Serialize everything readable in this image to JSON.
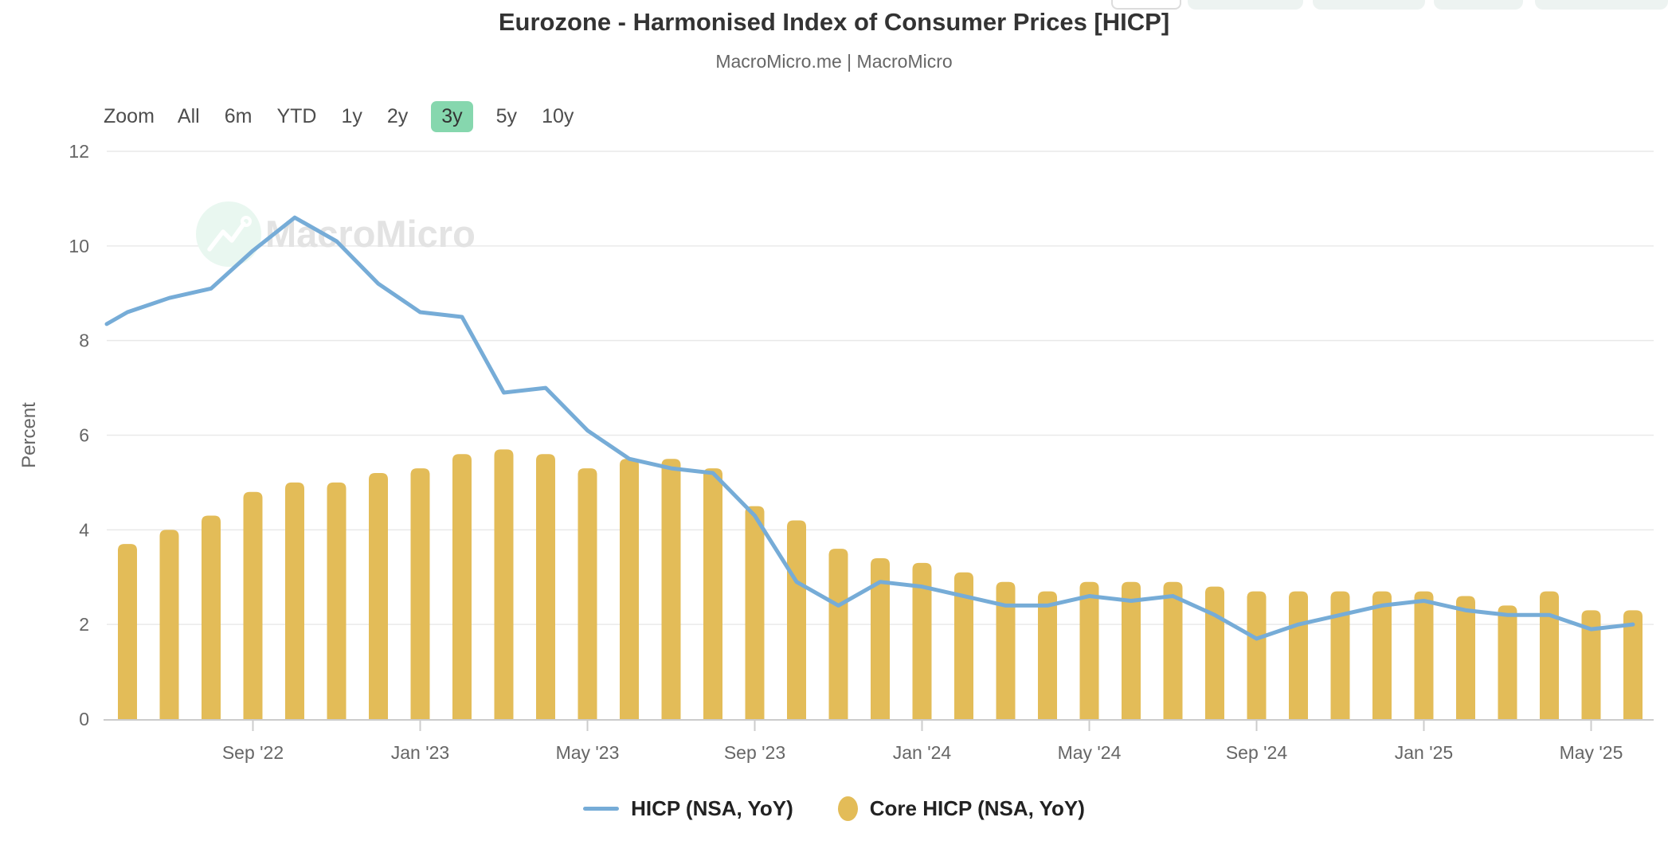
{
  "header": {
    "title": "Eurozone - Harmonised Index of Consumer Prices [HICP]",
    "subtitle": "MacroMicro.me | MacroMicro"
  },
  "toolbar": {
    "zoom_label": "Zoom",
    "ranges": [
      "All",
      "6m",
      "YTD",
      "1y",
      "2y",
      "3y",
      "5y",
      "10y"
    ],
    "active": "3y",
    "active_bg": "#86d7ae"
  },
  "watermark": {
    "brand": "MacroMicro"
  },
  "legend": [
    {
      "label": "HICP (NSA, YoY)",
      "type": "line",
      "color": "#76acd7"
    },
    {
      "label": "Core HICP (NSA, YoY)",
      "type": "circle",
      "color": "#e3bc58"
    }
  ],
  "chart_data": {
    "type": "line+bar",
    "title": "Eurozone - Harmonised Index of Consumer Prices [HICP]",
    "xlabel": "",
    "ylabel": "Percent",
    "ylim": [
      0,
      12
    ],
    "ytick_step": 2,
    "grid": "horizontal",
    "legend_position": "bottom",
    "categories": [
      "Jun '22",
      "Jul '22",
      "Aug '22",
      "Sep '22",
      "Oct '22",
      "Nov '22",
      "Dec '22",
      "Jan '23",
      "Feb '23",
      "Mar '23",
      "Apr '23",
      "May '23",
      "Jun '23",
      "Jul '23",
      "Aug '23",
      "Sep '23",
      "Oct '23",
      "Nov '23",
      "Dec '23",
      "Jan '24",
      "Feb '24",
      "Mar '24",
      "Apr '24",
      "May '24",
      "Jun '24",
      "Jul '24",
      "Aug '24",
      "Sep '24",
      "Oct '24",
      "Nov '24",
      "Dec '24",
      "Jan '25",
      "Feb '25",
      "Mar '25",
      "Apr '25",
      "May '25",
      "Jun '25"
    ],
    "xtick_month_indices": [
      3,
      7,
      11,
      15,
      19,
      23,
      27,
      31,
      35
    ],
    "xtick_labels": [
      "Sep '22",
      "Jan '23",
      "May '23",
      "Sep '23",
      "Jan '24",
      "May '24",
      "Sep '24",
      "Jan '25",
      "May '25"
    ],
    "series": [
      {
        "name": "HICP (NSA, YoY)",
        "type": "line",
        "color": "#76acd7",
        "left_edge_value": 8.35,
        "values": [
          8.6,
          8.9,
          9.1,
          9.9,
          10.6,
          10.1,
          9.2,
          8.6,
          8.5,
          6.9,
          7.0,
          6.1,
          5.5,
          5.3,
          5.2,
          4.3,
          2.9,
          2.4,
          2.9,
          2.8,
          2.6,
          2.4,
          2.4,
          2.6,
          2.5,
          2.6,
          2.2,
          1.7,
          2.0,
          2.2,
          2.4,
          2.5,
          2.3,
          2.2,
          2.2,
          1.9,
          2.0
        ]
      },
      {
        "name": "Core HICP (NSA, YoY)",
        "type": "bar",
        "color": "#e3bc58",
        "values": [
          3.7,
          4.0,
          4.3,
          4.8,
          5.0,
          5.0,
          5.2,
          5.3,
          5.6,
          5.7,
          5.6,
          5.3,
          5.5,
          5.5,
          5.3,
          4.5,
          4.2,
          3.6,
          3.4,
          3.3,
          3.1,
          2.9,
          2.7,
          2.9,
          2.9,
          2.9,
          2.8,
          2.7,
          2.7,
          2.7,
          2.7,
          2.7,
          2.6,
          2.4,
          2.7,
          2.3,
          2.3
        ]
      }
    ],
    "axis_text_color": "#666666",
    "grid_color": "#e9e9e9",
    "axis_line_color": "#cccccc",
    "watermark_circle_color": "#e9f7f0",
    "watermark_text_color": "#e3e3e3"
  }
}
